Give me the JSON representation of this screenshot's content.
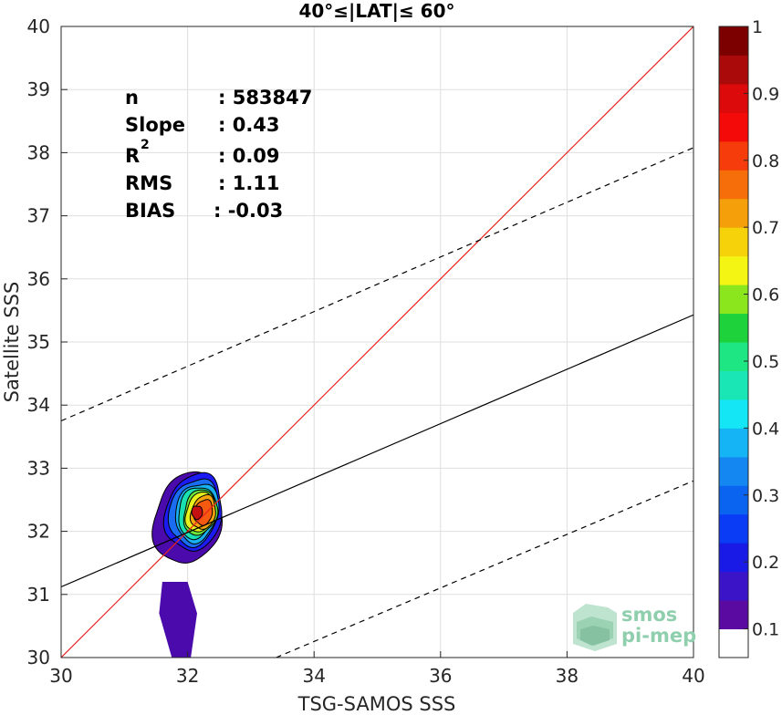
{
  "chart_data": {
    "type": "heatmap",
    "title": "40°≤|LAT|≤ 60°",
    "xlabel": "TSG-SAMOS SSS",
    "ylabel": "Satellite SSS",
    "xlim": [
      30,
      40
    ],
    "ylim": [
      30,
      40
    ],
    "xticks": [
      "30",
      "32",
      "34",
      "36",
      "38",
      "40"
    ],
    "yticks": [
      "30",
      "31",
      "32",
      "33",
      "34",
      "35",
      "36",
      "37",
      "38",
      "39",
      "40"
    ],
    "grid": true,
    "stats": [
      {
        "label": "n",
        "value": ": 583847"
      },
      {
        "label": "Slope",
        "value": ": 0.43"
      },
      {
        "label": "R",
        "sup": "2",
        "value": ": 0.09"
      },
      {
        "label": "RMS",
        "value": ": 1.11"
      },
      {
        "label": "BIAS",
        "value": ": -0.03"
      }
    ],
    "lines": {
      "identity": {
        "color": "#e8231e",
        "x": [
          30,
          40
        ],
        "y": [
          30,
          40
        ]
      },
      "fit": {
        "color": "#000000",
        "x": [
          30,
          40
        ],
        "y": [
          31.12,
          35.43
        ]
      },
      "fit_upper": {
        "color": "#000000",
        "dash": true,
        "x": [
          30,
          40
        ],
        "y": [
          33.75,
          38.08
        ]
      },
      "fit_lower": {
        "color": "#000000",
        "dash": true,
        "x": [
          33.4,
          40
        ],
        "y": [
          30.0,
          32.8
        ]
      }
    },
    "density_contours": [
      {
        "level": 0.05,
        "color": "#4b0aab",
        "center": [
          32.0,
          32.2
        ],
        "rx": 1.0,
        "ry": 1.55,
        "angle": 58
      },
      {
        "level": 0.15,
        "color": "#1c1cf2",
        "center": [
          32.1,
          32.3
        ],
        "rx": 0.85,
        "ry": 1.3,
        "angle": 58
      },
      {
        "level": 0.25,
        "color": "#1a6cf0",
        "center": [
          32.1,
          32.3
        ],
        "rx": 0.74,
        "ry": 1.12,
        "angle": 58
      },
      {
        "level": 0.35,
        "color": "#18b0f0",
        "center": [
          32.15,
          32.3
        ],
        "rx": 0.65,
        "ry": 0.98,
        "angle": 58
      },
      {
        "level": 0.45,
        "color": "#19e0b0",
        "center": [
          32.15,
          32.3
        ],
        "rx": 0.57,
        "ry": 0.86,
        "angle": 58
      },
      {
        "level": 0.55,
        "color": "#6ce63a",
        "center": [
          32.2,
          32.3
        ],
        "rx": 0.5,
        "ry": 0.76,
        "angle": 58
      },
      {
        "level": 0.62,
        "color": "#e6f21a",
        "center": [
          32.2,
          32.3
        ],
        "rx": 0.44,
        "ry": 0.66,
        "angle": 58
      },
      {
        "level": 0.7,
        "color": "#f5a40e",
        "center": [
          32.25,
          32.3
        ],
        "rx": 0.38,
        "ry": 0.56,
        "angle": 58
      },
      {
        "level": 0.8,
        "color": "#f55a10",
        "center": [
          32.25,
          32.3
        ],
        "rx": 0.28,
        "ry": 0.42,
        "angle": 58
      },
      {
        "level": 0.92,
        "color": "#c41010",
        "center": [
          32.15,
          32.3
        ],
        "rx": 0.14,
        "ry": 0.26,
        "angle": 50
      }
    ],
    "colorbar": {
      "ticks": [
        "0.1",
        "0.2",
        "0.3",
        "0.4",
        "0.5",
        "0.6",
        "0.7",
        "0.8",
        "0.9",
        "1"
      ],
      "colors": [
        "#ffffff",
        "#5a0aa0",
        "#3b14c8",
        "#1a1ae6",
        "#0a3cf5",
        "#0a64f0",
        "#1488f0",
        "#14b4f5",
        "#14e6f5",
        "#19e6b4",
        "#1ee682",
        "#1ed23c",
        "#8ce61e",
        "#f5f514",
        "#f5d20a",
        "#f5a00a",
        "#f56e0a",
        "#f53c0a",
        "#f50a0a",
        "#dc0a0a",
        "#aa0a0a",
        "#7d0000"
      ]
    },
    "logo": {
      "line1": "smos",
      "line2": "pi-mep"
    }
  }
}
